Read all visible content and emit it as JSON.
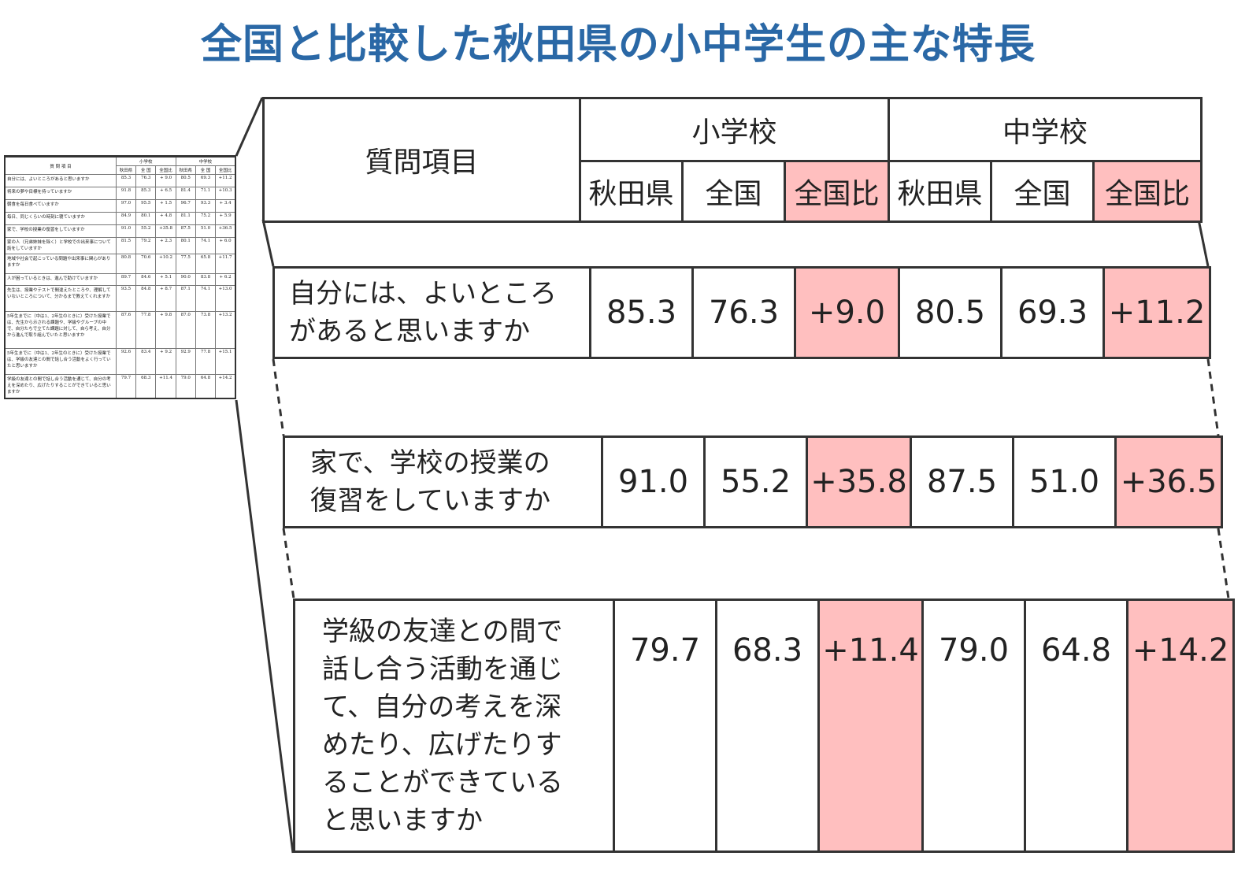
{
  "title": "全国と比較した秋田県の小中学生の主な特長",
  "colors": {
    "title": "#2a68a6",
    "highlight": "#ffbfbf",
    "border": "#333333"
  },
  "header": {
    "question": "質問項目",
    "groups": [
      "小学校",
      "中学校"
    ],
    "subcols": [
      "秋田県",
      "全国",
      "全国比",
      "秋田県",
      "全国",
      "全国比"
    ]
  },
  "highlight_rows": [
    {
      "question": "自分には、よいところがあると思いますか",
      "lines": [
        "自分には、よいところ",
        "があると思いますか"
      ],
      "values": [
        "85.3",
        "76.3",
        "+9.0",
        "80.5",
        "69.3",
        "+11.2"
      ]
    },
    {
      "question": "家で、学校の授業の復習をしていますか",
      "lines": [
        "家で、学校の授業の",
        "復習をしていますか"
      ],
      "values": [
        "91.0",
        "55.2",
        "+35.8",
        "87.5",
        "51.0",
        "+36.5"
      ]
    },
    {
      "question": "学級の友達との間で話し合う活動を通じて、自分の考えを深めたり、広げたりすることができていると思いますか",
      "lines": [
        "学級の友達との間で",
        "話し合う活動を通じ",
        "て、自分の考えを深",
        "めたり、広げたりす",
        "ることができている",
        "と思いますか"
      ],
      "values": [
        "79.7",
        "68.3",
        "+11.4",
        "79.0",
        "64.8",
        "+14.2"
      ]
    }
  ],
  "thumbnail": {
    "header": {
      "question": "質 問 項 目",
      "groups": [
        "小学校",
        "中学校"
      ],
      "subcols": [
        "秋田県",
        "全 国",
        "全国比",
        "秋田県",
        "全 国",
        "全国比"
      ]
    },
    "rows": [
      {
        "q": "自分には、よいところがあると思いますか",
        "v": [
          "85.3",
          "76.3",
          "+ 9.0",
          "80.5",
          "69.3",
          "+11.2"
        ]
      },
      {
        "q": "将来の夢や目標を持っていますか",
        "v": [
          "91.8",
          "85.3",
          "+ 6.5",
          "81.4",
          "71.1",
          "+10.3"
        ]
      },
      {
        "q": "朝食を毎日食べていますか",
        "v": [
          "97.0",
          "95.5",
          "+ 1.5",
          "96.7",
          "93.3",
          "+ 3.4"
        ]
      },
      {
        "q": "毎日、同じくらいの時刻に寝ていますか",
        "v": [
          "84.9",
          "80.1",
          "+ 4.8",
          "81.1",
          "75.2",
          "+ 5.9"
        ]
      },
      {
        "q": "家で、学校の授業の復習をしていますか",
        "v": [
          "91.0",
          "55.2",
          "+35.8",
          "87.5",
          "51.0",
          "+36.5"
        ]
      },
      {
        "q": "家の人（兄弟姉妹を除く）と学校での出来事について話をしていますか",
        "v": [
          "81.5",
          "79.2",
          "+ 2.3",
          "80.1",
          "74.1",
          "+ 6.0"
        ]
      },
      {
        "q": "地域や社会で起こっている問題や出来事に関心がありますか",
        "v": [
          "80.8",
          "70.6",
          "+10.2",
          "77.5",
          "65.8",
          "+11.7"
        ]
      },
      {
        "q": "人が困っているときは、進んで助けていますか",
        "v": [
          "89.7",
          "84.6",
          "+ 5.1",
          "90.0",
          "83.8",
          "+ 6.2"
        ]
      },
      {
        "q": "先生は、授業やテストで間違えたところや、理解していないところについて、分かるまで教えてくれますか",
        "v": [
          "93.5",
          "84.8",
          "+ 8.7",
          "87.1",
          "74.1",
          "+13.0"
        ]
      },
      {
        "q": "5年生までに（中は1、2年生のときに）受けた授業では、先生から示される課題や、学級やグループの中で、自分たちで立てた課題に対して、自ら考え、自分から進んで取り組んでいたと思いますか",
        "v": [
          "87.6",
          "77.8",
          "+ 9.8",
          "87.0",
          "73.8",
          "+13.2"
        ]
      },
      {
        "q": "5年生までに（中は1、2年生のときに）受けた授業では、学級の友達との間で話し合う活動をよく行っていたと思いますか",
        "v": [
          "92.6",
          "83.4",
          "+ 9.2",
          "92.9",
          "77.8",
          "+15.1"
        ]
      },
      {
        "q": "学級の友達との間で話し合う活動を通じて、自分の考えを深めたり、広げたりすることができていると思いますか",
        "v": [
          "79.7",
          "68.3",
          "+11.4",
          "79.0",
          "64.8",
          "+14.2"
        ]
      }
    ]
  }
}
